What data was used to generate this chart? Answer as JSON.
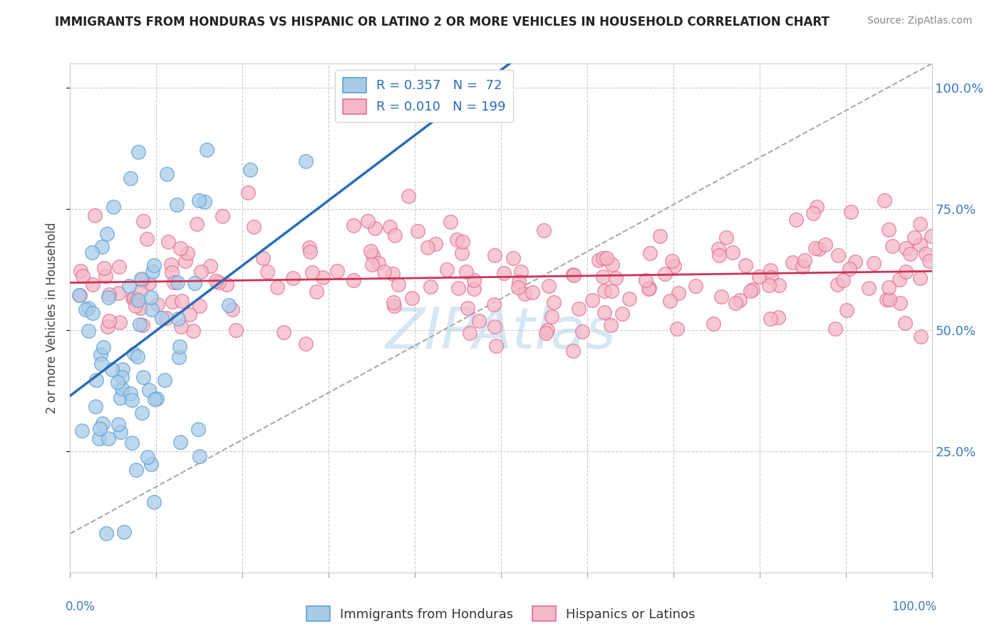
{
  "title": "IMMIGRANTS FROM HONDURAS VS HISPANIC OR LATINO 2 OR MORE VEHICLES IN HOUSEHOLD CORRELATION CHART",
  "source": "Source: ZipAtlas.com",
  "ylabel": "2 or more Vehicles in Household",
  "yticks": [
    "25.0%",
    "50.0%",
    "75.0%",
    "100.0%"
  ],
  "ytick_values": [
    0.25,
    0.5,
    0.75,
    1.0
  ],
  "legend1_label": "R = 0.357   N =  72",
  "legend2_label": "R = 0.010   N = 199",
  "legend_series1": "Immigrants from Honduras",
  "legend_series2": "Hispanics or Latinos",
  "blue_fill": "#a8cce8",
  "blue_edge": "#5a9fd4",
  "pink_fill": "#f5b8c8",
  "pink_edge": "#e07090",
  "blue_line_color": "#2a6db5",
  "pink_line_color": "#cc3355",
  "gray_line_color": "#aaaaaa",
  "watermark_color": "#c5ddf0",
  "xlim": [
    0,
    1.0
  ],
  "ylim": [
    0,
    1.05
  ]
}
